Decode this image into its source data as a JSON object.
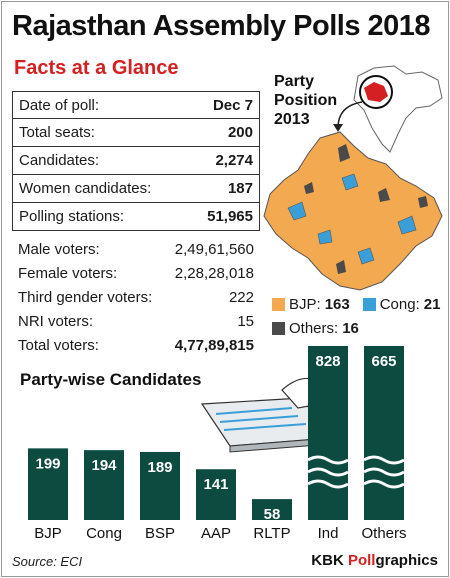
{
  "header": {
    "title": "Rajasthan Assembly Polls 2018",
    "subtitle": "Facts at a Glance"
  },
  "facts": [
    {
      "label": "Date of poll:",
      "value": "Dec 7"
    },
    {
      "label": "Total seats:",
      "value": "200"
    },
    {
      "label": "Candidates:",
      "value": "2,274"
    },
    {
      "label": "Women candidates:",
      "value": "187"
    },
    {
      "label": "Polling stations:",
      "value": "51,965"
    }
  ],
  "voters": [
    {
      "label": "Male voters:",
      "value": "2,49,61,560"
    },
    {
      "label": "Female voters:",
      "value": "2,28,28,018"
    },
    {
      "label": "Third gender voters:",
      "value": "222"
    },
    {
      "label": "NRI voters:",
      "value": "15"
    },
    {
      "label": "Total voters:",
      "value": "4,77,89,815"
    }
  ],
  "party_position": {
    "line1": "Party",
    "line2": "Position",
    "line3": "2013",
    "legend": [
      {
        "label": "BJP:",
        "value": "163",
        "color": "#f2a950"
      },
      {
        "label": "Cong:",
        "value": "21",
        "color": "#3a9fd8"
      },
      {
        "label": "Others:",
        "value": "16",
        "color": "#4a4a4a"
      }
    ]
  },
  "chart_data": {
    "type": "bar",
    "title": "Party-wise Candidates",
    "categories": [
      "BJP",
      "Cong",
      "BSP",
      "AAP",
      "RLTP",
      "Ind",
      "Others"
    ],
    "values": [
      199,
      194,
      189,
      141,
      58,
      828,
      665
    ],
    "axis_break_categories": [
      "Ind",
      "Others"
    ],
    "bar_color": "#0d4a40",
    "label_color": "#ffffff"
  },
  "footer": {
    "source": "Source: ECI",
    "credit_a": "KBK ",
    "credit_b": "Poll",
    "credit_c": "graphics"
  }
}
